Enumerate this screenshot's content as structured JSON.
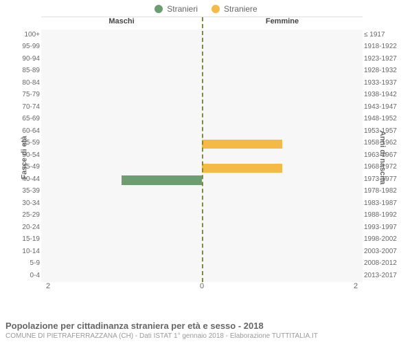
{
  "legend": {
    "male": {
      "label": "Stranieri",
      "color": "#6d9e70"
    },
    "female": {
      "label": "Straniere",
      "color": "#f5b945"
    }
  },
  "headers": {
    "male": "Maschi",
    "female": "Femmine"
  },
  "axis_titles": {
    "left": "Fasce di età",
    "right": "Anni di nascita"
  },
  "x_axis": {
    "max": 2,
    "ticks_left": "2",
    "ticks_center": "0",
    "ticks_right": "2"
  },
  "background_color": "#ffffff",
  "plot_background_color": "#f7f7f7",
  "grid_color": "#e0e0e0",
  "center_line_color": "#7b8a3e",
  "rows": [
    {
      "age": "100+",
      "birth": "≤ 1917",
      "male": 0,
      "female": 0
    },
    {
      "age": "95-99",
      "birth": "1918-1922",
      "male": 0,
      "female": 0
    },
    {
      "age": "90-94",
      "birth": "1923-1927",
      "male": 0,
      "female": 0
    },
    {
      "age": "85-89",
      "birth": "1928-1932",
      "male": 0,
      "female": 0
    },
    {
      "age": "80-84",
      "birth": "1933-1937",
      "male": 0,
      "female": 0
    },
    {
      "age": "75-79",
      "birth": "1938-1942",
      "male": 0,
      "female": 0
    },
    {
      "age": "70-74",
      "birth": "1943-1947",
      "male": 0,
      "female": 0
    },
    {
      "age": "65-69",
      "birth": "1948-1952",
      "male": 0,
      "female": 0
    },
    {
      "age": "60-64",
      "birth": "1953-1957",
      "male": 0,
      "female": 0
    },
    {
      "age": "55-59",
      "birth": "1958-1962",
      "male": 0,
      "female": 1
    },
    {
      "age": "50-54",
      "birth": "1963-1967",
      "male": 0,
      "female": 0
    },
    {
      "age": "45-49",
      "birth": "1968-1972",
      "male": 0,
      "female": 1
    },
    {
      "age": "40-44",
      "birth": "1973-1977",
      "male": 1,
      "female": 0
    },
    {
      "age": "35-39",
      "birth": "1978-1982",
      "male": 0,
      "female": 0
    },
    {
      "age": "30-34",
      "birth": "1983-1987",
      "male": 0,
      "female": 0
    },
    {
      "age": "25-29",
      "birth": "1988-1992",
      "male": 0,
      "female": 0
    },
    {
      "age": "20-24",
      "birth": "1993-1997",
      "male": 0,
      "female": 0
    },
    {
      "age": "15-19",
      "birth": "1998-2002",
      "male": 0,
      "female": 0
    },
    {
      "age": "10-14",
      "birth": "2003-2007",
      "male": 0,
      "female": 0
    },
    {
      "age": "5-9",
      "birth": "2008-2012",
      "male": 0,
      "female": 0
    },
    {
      "age": "0-4",
      "birth": "2013-2017",
      "male": 0,
      "female": 0
    }
  ],
  "footer": {
    "title": "Popolazione per cittadinanza straniera per età e sesso - 2018",
    "subtitle": "COMUNE DI PIETRAFERRAZZANA (CH) - Dati ISTAT 1° gennaio 2018 - Elaborazione TUTTITALIA.IT"
  }
}
